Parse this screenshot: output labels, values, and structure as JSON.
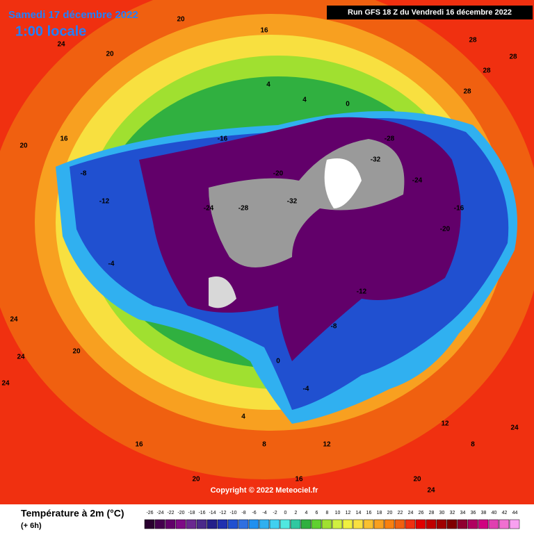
{
  "header": {
    "date": "Samedi 17 décembre 2022",
    "time": "1:00 locale",
    "run": "Run GFS 18 Z du Vendredi 16 décembre 2022"
  },
  "copyright": "Copyright © 2022 Meteociel.fr",
  "legend": {
    "title": "Température à 2m (°C)",
    "subtitle": "(+ 6h)",
    "ticks": [
      -26,
      -24,
      -22,
      -20,
      -18,
      -16,
      -14,
      -12,
      -10,
      -8,
      -6,
      -4,
      -2,
      0,
      2,
      4,
      6,
      8,
      10,
      12,
      14,
      16,
      18,
      20,
      22,
      24,
      26,
      28,
      30,
      32,
      34,
      36,
      38,
      40,
      42,
      44
    ],
    "colors": [
      "#2a0030",
      "#44004e",
      "#62006a",
      "#7e0a86",
      "#6a2890",
      "#4a2a8a",
      "#24208a",
      "#2030b0",
      "#2050d0",
      "#3070e0",
      "#2090f0",
      "#30b0f0",
      "#40d0f0",
      "#50e8e0",
      "#30c8a0",
      "#30b040",
      "#60d030",
      "#a0e030",
      "#d0f040",
      "#f0f040",
      "#f8e040",
      "#f8c030",
      "#f8a020",
      "#f88010",
      "#f06010",
      "#f03010",
      "#e00000",
      "#c00000",
      "#a00000",
      "#800000",
      "#900030",
      "#b00060",
      "#d00080",
      "#e040b0",
      "#f070d0",
      "#f8a0f0"
    ]
  },
  "map_labels": [
    24,
    20,
    16,
    20,
    28,
    28,
    28,
    28,
    20,
    16,
    4,
    4,
    0,
    -4,
    -8,
    -12,
    -16,
    -20,
    -24,
    -28,
    -32,
    -32,
    -28,
    -24,
    -20,
    -16,
    -12,
    -8,
    -4,
    0,
    4,
    8,
    12,
    16,
    20,
    24,
    24,
    20,
    16,
    12,
    8,
    24,
    24,
    20,
    24
  ]
}
